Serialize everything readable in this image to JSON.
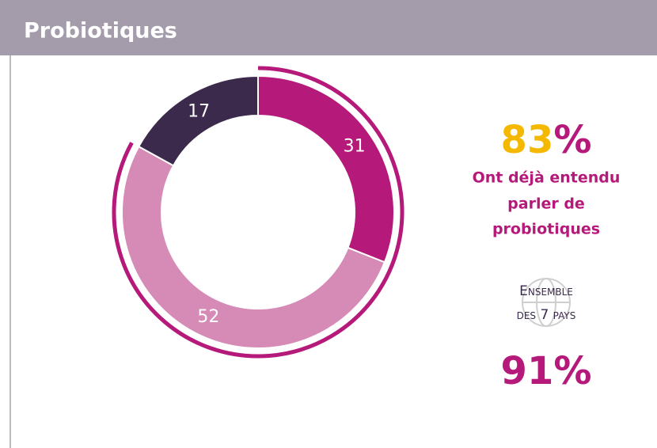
{
  "header": {
    "title": "Probiotiques"
  },
  "chart_data": {
    "type": "donut",
    "values": [
      31,
      52,
      17
    ],
    "colors": [
      "#b5197a",
      "#d68bb6",
      "#3b2a4b"
    ]
  },
  "summary": {
    "headline_number": "83",
    "headline_unit": "%",
    "caption_lines": [
      "Ont déjà entendu",
      "parler de",
      "probiotiques"
    ],
    "overall_lines": [
      "Ensemble",
      "des 7 pays"
    ],
    "overall_value": "91%"
  }
}
